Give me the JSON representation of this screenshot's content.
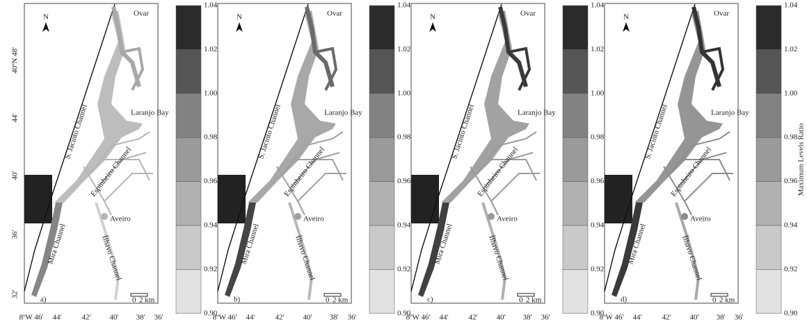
{
  "panels": [
    {
      "label": "a)"
    },
    {
      "label": "b)"
    },
    {
      "label": "c)"
    },
    {
      "label": "d)"
    }
  ],
  "places": {
    "ovar": "Ovar",
    "laranjo_bay": "Laranjo Bay",
    "aveiro": "Aveiro",
    "s_jacinto": "S. Jacinto Channel",
    "espinheiro": "Espinheiro Channel",
    "mira": "Mira Channel",
    "ilhavo": "Ílhavo Channel"
  },
  "north": "N",
  "scale": {
    "zero": "0",
    "length": "2 km"
  },
  "x_ticks": [
    "8ºW 46'",
    "44'",
    "42'",
    "40'",
    "38'",
    "36'"
  ],
  "y_ticks": [
    "40ºN 48'",
    "44'",
    "40'",
    "36'",
    "32'"
  ],
  "colorbar": {
    "label": "Maximum Levels Ratio",
    "ticks": [
      "1.04",
      "1.02",
      "1.00",
      "0.98",
      "0.96",
      "0.94",
      "0.92",
      "0.90"
    ]
  }
}
